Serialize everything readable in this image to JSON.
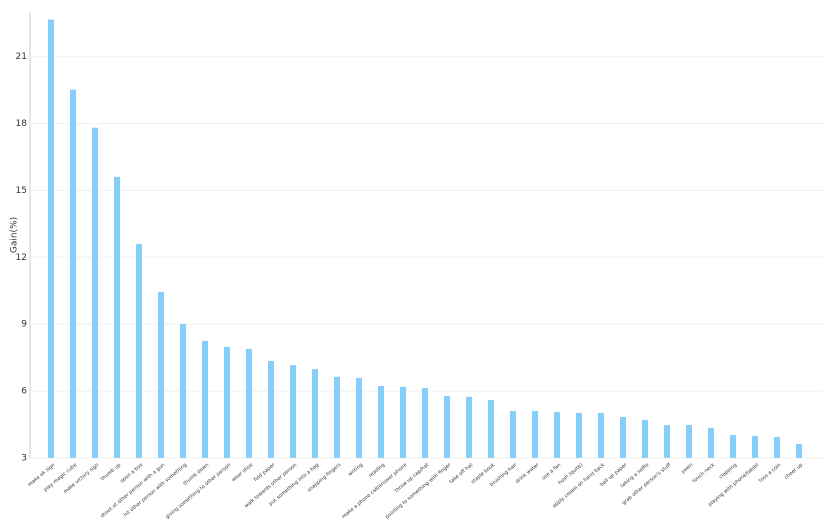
{
  "chart_data": {
    "type": "bar",
    "y_label": "Gain(%)",
    "categories": [
      "make ok sign",
      "play magic cube",
      "make victory sign",
      "thumb up",
      "open a box",
      "shoot at other person with a gun",
      "hit other person with something",
      "thumb down",
      "giving something to other person",
      "wear shoe",
      "fold paper",
      "walk towards other person",
      "put something into a bag",
      "snapping fingers",
      "writing",
      "reading",
      "make a phone call/answer phone",
      "throw up cap/hat",
      "pointing to something with finger",
      "take off hat",
      "staple book",
      "brushing hair",
      "drink water",
      "use a fan",
      "hush (quite)",
      "apply cream on hand back",
      "ball up paper",
      "taking a selfie",
      "grab other person's stuff",
      "yawn",
      "touch neck",
      "clapping",
      "playing with phone/tablet",
      "toss a coin",
      "cheer up"
    ],
    "values": [
      22.66,
      19.52,
      17.81,
      15.61,
      12.6,
      10.45,
      9.01,
      8.25,
      7.98,
      7.89,
      7.35,
      7.17,
      6.99,
      6.64,
      6.59,
      6.23,
      6.19,
      6.14,
      5.78,
      5.74,
      5.6,
      5.11,
      5.11,
      5.06,
      5.02,
      5.02,
      4.84,
      4.71,
      4.48,
      4.48,
      4.35,
      4.03,
      3.99,
      3.94,
      3.63
    ],
    "color": "#87cefa",
    "ylim": [
      3,
      23
    ],
    "yticks": [
      3,
      6,
      9,
      12,
      15,
      18,
      21
    ],
    "grid": true
  }
}
